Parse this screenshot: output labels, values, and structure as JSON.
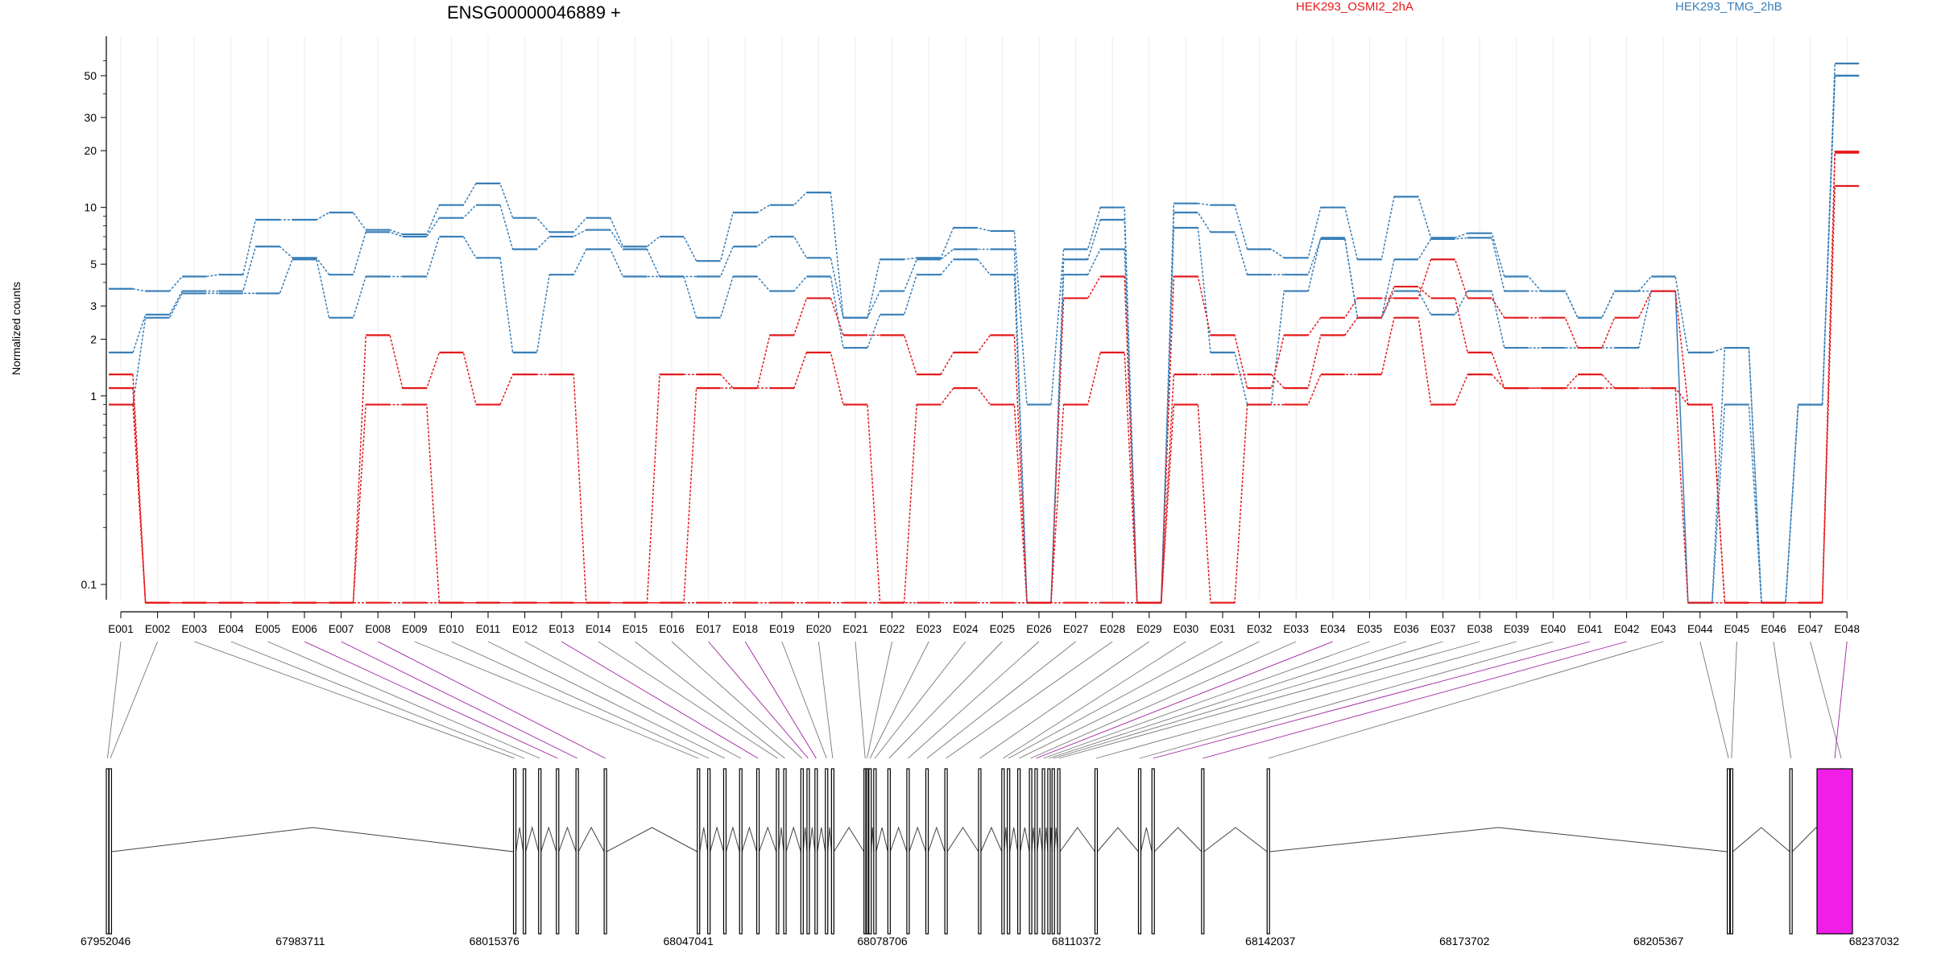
{
  "chart_data": {
    "type": "line",
    "title": "ENSG00000046889 +",
    "ylabel": "Normalized counts",
    "yscale": "log",
    "ylim": [
      0.08,
      65
    ],
    "yticks": [
      0.1,
      1,
      2,
      3,
      5,
      10,
      20,
      30,
      50
    ],
    "ytick_labels": [
      "0.1",
      "1",
      "2",
      "3",
      "5",
      "10",
      "20",
      "30",
      "50"
    ],
    "grid": "vertical",
    "legend_position": "top",
    "colors": {
      "condition_a": "#e41a1c",
      "condition_b": "#377eb8",
      "highlight_exon": "#f01ee6",
      "connector_highlight": "#a020a0"
    },
    "legend": [
      {
        "label": "HEK293_OSMI2_2hA",
        "color": "#e41a1c"
      },
      {
        "label": "HEK293_TMG_2hB",
        "color": "#377eb8"
      }
    ],
    "categories": [
      "E001",
      "E002",
      "E003",
      "E004",
      "E005",
      "E006",
      "E007",
      "E008",
      "E009",
      "E010",
      "E011",
      "E012",
      "E013",
      "E014",
      "E015",
      "E016",
      "E017",
      "E018",
      "E019",
      "E020",
      "E021",
      "E022",
      "E023",
      "E024",
      "E025",
      "E026",
      "E027",
      "E028",
      "E029",
      "E030",
      "E031",
      "E032",
      "E033",
      "E034",
      "E035",
      "E036",
      "E037",
      "E038",
      "E039",
      "E040",
      "E041",
      "E042",
      "E043",
      "E044",
      "E045",
      "E046",
      "E047",
      "E048"
    ],
    "series": [
      {
        "group": "HEK293_TMG_2hB",
        "values": [
          3.7,
          3.6,
          4.3,
          4.4,
          8.6,
          8.6,
          9.4,
          7.6,
          7.2,
          10.3,
          13.4,
          8.8,
          7.4,
          8.8,
          6.2,
          7.0,
          5.2,
          9.4,
          10.3,
          12.0,
          2.6,
          5.3,
          5.4,
          7.8,
          7.5,
          0.9,
          6.0,
          10.0,
          0.08,
          10.5,
          10.3,
          6.0,
          5.4,
          10.0,
          5.3,
          11.4,
          6.9,
          7.3,
          4.3,
          3.6,
          2.6,
          3.6,
          4.3,
          1.7,
          1.8,
          0.08,
          0.9,
          58
        ]
      },
      {
        "group": "HEK293_TMG_2hB",
        "values": [
          1.7,
          2.7,
          3.6,
          3.6,
          6.2,
          5.4,
          4.4,
          7.4,
          7.0,
          8.8,
          10.3,
          6.0,
          7.0,
          7.6,
          6.0,
          4.3,
          4.3,
          6.2,
          7.0,
          5.4,
          2.6,
          3.6,
          5.3,
          6.0,
          6.0,
          0.08,
          5.3,
          8.6,
          0.08,
          9.4,
          7.4,
          4.4,
          4.4,
          6.8,
          2.6,
          5.3,
          6.8,
          6.9,
          3.6,
          3.6,
          2.6,
          3.6,
          3.6,
          0.08,
          1.8,
          0.08,
          0.9,
          50
        ]
      },
      {
        "group": "HEK293_TMG_2hB",
        "values": [
          0.9,
          2.6,
          3.5,
          3.5,
          3.5,
          5.3,
          2.6,
          4.3,
          4.3,
          7.0,
          5.4,
          1.7,
          4.4,
          6.0,
          4.3,
          4.3,
          2.6,
          4.3,
          3.6,
          4.3,
          1.8,
          2.7,
          4.4,
          5.3,
          4.4,
          0.08,
          4.4,
          6.0,
          0.08,
          7.8,
          1.7,
          0.9,
          3.6,
          6.9,
          2.6,
          3.6,
          2.7,
          3.6,
          1.8,
          1.8,
          1.8,
          1.8,
          3.6,
          0.08,
          0.9,
          0.08,
          0.9,
          50
        ]
      },
      {
        "group": "HEK293_OSMI2_2hA",
        "values": [
          1.3,
          0.08,
          0.08,
          0.08,
          0.08,
          0.08,
          0.08,
          2.1,
          1.1,
          1.7,
          0.9,
          1.3,
          1.3,
          0.08,
          0.08,
          1.3,
          1.3,
          1.1,
          2.1,
          3.3,
          2.1,
          2.1,
          1.3,
          1.7,
          2.1,
          0.08,
          3.3,
          4.3,
          0.08,
          4.3,
          2.1,
          1.1,
          2.1,
          2.6,
          3.3,
          3.3,
          5.3,
          3.3,
          2.6,
          2.6,
          1.8,
          2.6,
          3.6,
          0.9,
          0.08,
          0.08,
          0.08,
          19.5
        ]
      },
      {
        "group": "HEK293_OSMI2_2hA",
        "values": [
          1.1,
          0.08,
          0.08,
          0.08,
          0.08,
          0.08,
          0.08,
          0.9,
          0.9,
          0.08,
          0.08,
          0.08,
          0.08,
          0.08,
          0.08,
          0.08,
          1.1,
          1.1,
          1.1,
          1.7,
          0.9,
          0.08,
          0.9,
          1.1,
          0.9,
          0.08,
          0.9,
          1.7,
          0.08,
          1.3,
          1.3,
          1.3,
          1.1,
          2.1,
          2.6,
          3.8,
          3.3,
          1.7,
          1.1,
          1.1,
          1.3,
          1.1,
          1.1,
          0.08,
          0.08,
          0.08,
          0.08,
          13
        ]
      },
      {
        "group": "HEK293_OSMI2_2hA",
        "values": [
          0.9,
          0.08,
          0.08,
          0.08,
          0.08,
          0.08,
          0.08,
          0.08,
          0.08,
          0.08,
          0.08,
          0.08,
          0.08,
          0.08,
          0.08,
          0.08,
          0.08,
          0.08,
          0.08,
          0.08,
          0.08,
          0.08,
          0.08,
          0.08,
          0.08,
          0.08,
          0.08,
          0.08,
          0.08,
          0.9,
          0.08,
          0.9,
          0.9,
          1.3,
          1.3,
          2.6,
          0.9,
          1.3,
          1.1,
          1.1,
          1.1,
          1.1,
          1.1,
          0.9,
          0.08,
          0.08,
          0.08,
          19.8
        ]
      }
    ],
    "genomic_axis": {
      "ticks": [
        "67952046",
        "67983711",
        "68015376",
        "68047041",
        "68078706",
        "68110372",
        "68142037",
        "68173702",
        "68205367",
        "68237032"
      ]
    },
    "gene_model": {
      "exon_starts": [
        67952046,
        67952500,
        68018500,
        68020100,
        68022600,
        68025500,
        68028700,
        68033300,
        68048500,
        68050200,
        68052800,
        68055400,
        68058200,
        68061400,
        68062600,
        68065400,
        68066400,
        68067700,
        68069400,
        68070400,
        68075700,
        68076000,
        68076500,
        68077300,
        68079600,
        68082700,
        68085800,
        68088900,
        68094400,
        68098200,
        68099100,
        68100800,
        68102700,
        68103600,
        68104800,
        68105700,
        68106400,
        68107300,
        68113400,
        68120500,
        68122700,
        68130800,
        68141500,
        68216600,
        68217100,
        68226800,
        68235000,
        68237032
      ],
      "highlight_exons": [
        "E048"
      ],
      "highlight_connectors": [
        "E006",
        "E007",
        "E008",
        "E013",
        "E017",
        "E018",
        "E034",
        "E041",
        "E042",
        "E048"
      ]
    }
  }
}
